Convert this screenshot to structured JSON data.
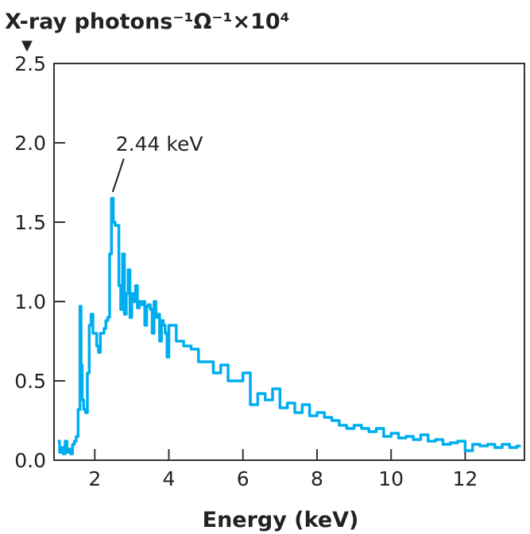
{
  "chart_data": {
    "type": "line",
    "step": true,
    "title": "",
    "ylabel": "X-ray photons⁻¹Ω⁻¹×10⁴",
    "ylabel_marker": "▼",
    "xlabel": "Energy (keV)",
    "xlim": [
      0.9,
      13.6
    ],
    "ylim": [
      0,
      2.5
    ],
    "xticks": [
      2,
      4,
      6,
      8,
      10,
      12
    ],
    "xtick_labels": [
      "2",
      "4",
      "6",
      "8",
      "10",
      "12"
    ],
    "yticks": [
      0,
      0.5,
      1.0,
      1.5,
      2.0,
      2.5
    ],
    "ytick_labels": [
      "0.0",
      "0.5",
      "1.0",
      "1.5",
      "2.0",
      "2.5"
    ],
    "grid": false,
    "line_color": "#00aeef",
    "annotation": {
      "text": "2.44 keV",
      "x": 2.44,
      "y": 1.65
    },
    "series": [
      {
        "x": [
          1.0,
          1.05,
          1.1,
          1.15,
          1.2,
          1.25,
          1.3,
          1.35,
          1.4,
          1.45,
          1.5,
          1.55,
          1.6,
          1.63,
          1.66,
          1.7,
          1.75,
          1.8,
          1.85,
          1.9,
          1.95,
          2.0,
          2.05,
          2.1,
          2.15,
          2.2,
          2.25,
          2.3,
          2.35,
          2.4,
          2.45,
          2.5,
          2.55,
          2.6,
          2.65,
          2.7,
          2.75,
          2.8,
          2.85,
          2.9,
          2.95,
          3.0,
          3.05,
          3.1,
          3.15,
          3.2,
          3.25,
          3.3,
          3.35,
          3.4,
          3.45,
          3.5,
          3.55,
          3.6,
          3.65,
          3.7,
          3.75,
          3.8,
          3.85,
          3.9,
          3.95,
          4.0,
          4.2,
          4.4,
          4.6,
          4.8,
          5.0,
          5.2,
          5.4,
          5.6,
          5.8,
          6.0,
          6.2,
          6.4,
          6.6,
          6.8,
          7.0,
          7.2,
          7.4,
          7.6,
          7.8,
          8.0,
          8.2,
          8.4,
          8.6,
          8.8,
          9.0,
          9.2,
          9.4,
          9.6,
          9.8,
          10.0,
          10.2,
          10.4,
          10.6,
          10.8,
          11.0,
          11.2,
          11.4,
          11.6,
          11.8,
          12.0,
          12.2,
          12.4,
          12.6,
          12.8,
          13.0,
          13.2,
          13.4
        ],
        "y": [
          0.12,
          0.05,
          0.08,
          0.04,
          0.12,
          0.05,
          0.07,
          0.04,
          0.1,
          0.12,
          0.15,
          0.32,
          0.97,
          0.6,
          0.38,
          0.32,
          0.3,
          0.55,
          0.85,
          0.92,
          0.8,
          0.8,
          0.72,
          0.68,
          0.8,
          0.8,
          0.83,
          0.88,
          0.9,
          1.3,
          1.65,
          1.5,
          1.48,
          1.48,
          1.1,
          0.95,
          1.3,
          0.92,
          1.05,
          1.2,
          0.9,
          1.05,
          1.0,
          1.1,
          0.96,
          1.0,
          0.98,
          1.0,
          0.85,
          0.97,
          0.98,
          0.95,
          0.8,
          1.0,
          0.9,
          0.92,
          0.75,
          0.88,
          0.85,
          0.8,
          0.65,
          0.85,
          0.75,
          0.72,
          0.7,
          0.62,
          0.62,
          0.55,
          0.6,
          0.5,
          0.5,
          0.55,
          0.35,
          0.42,
          0.38,
          0.45,
          0.33,
          0.36,
          0.3,
          0.35,
          0.28,
          0.3,
          0.27,
          0.25,
          0.22,
          0.2,
          0.22,
          0.2,
          0.18,
          0.2,
          0.15,
          0.17,
          0.14,
          0.15,
          0.13,
          0.16,
          0.12,
          0.13,
          0.1,
          0.11,
          0.12,
          0.06,
          0.1,
          0.09,
          0.1,
          0.08,
          0.1,
          0.08,
          0.09
        ]
      }
    ]
  }
}
